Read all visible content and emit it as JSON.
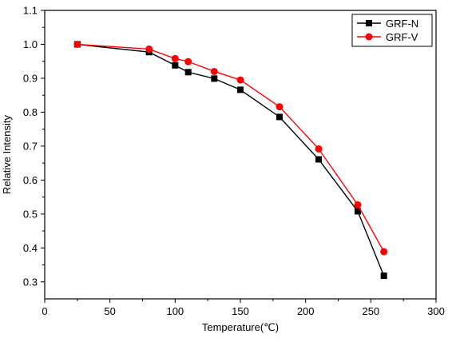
{
  "chart_data": {
    "type": "line",
    "title": "",
    "xlabel": "Temperature(℃)",
    "ylabel": "Relative Intensity",
    "xlim": [
      0,
      300
    ],
    "ylim": [
      0.25,
      1.1
    ],
    "x_ticks": [
      0,
      50,
      100,
      150,
      200,
      250,
      300
    ],
    "x_tick_labels": [
      "0",
      "50",
      "100",
      "150",
      "200",
      "250",
      "300"
    ],
    "y_ticks": [
      0.3,
      0.4,
      0.5,
      0.6,
      0.7,
      0.8,
      0.9,
      1.0,
      1.1
    ],
    "y_tick_labels": [
      "0.3",
      "0.4",
      "0.5",
      "0.6",
      "0.7",
      "0.8",
      "0.9",
      "1.0",
      "1.1"
    ],
    "grid": false,
    "legend_position": "top-right",
    "series": [
      {
        "name": "GRF-N",
        "color": "#000000",
        "marker": "square",
        "x": [
          25,
          80,
          100,
          110,
          130,
          150,
          180,
          210,
          240,
          260
        ],
        "y": [
          1.0,
          0.977,
          0.938,
          0.918,
          0.899,
          0.866,
          0.786,
          0.661,
          0.508,
          0.318
        ]
      },
      {
        "name": "GRF-V",
        "color": "#ff0000",
        "marker": "circle",
        "x": [
          25,
          80,
          100,
          110,
          130,
          150,
          180,
          210,
          240,
          260
        ],
        "y": [
          1.0,
          0.986,
          0.958,
          0.949,
          0.92,
          0.895,
          0.816,
          0.692,
          0.527,
          0.389
        ]
      }
    ]
  }
}
